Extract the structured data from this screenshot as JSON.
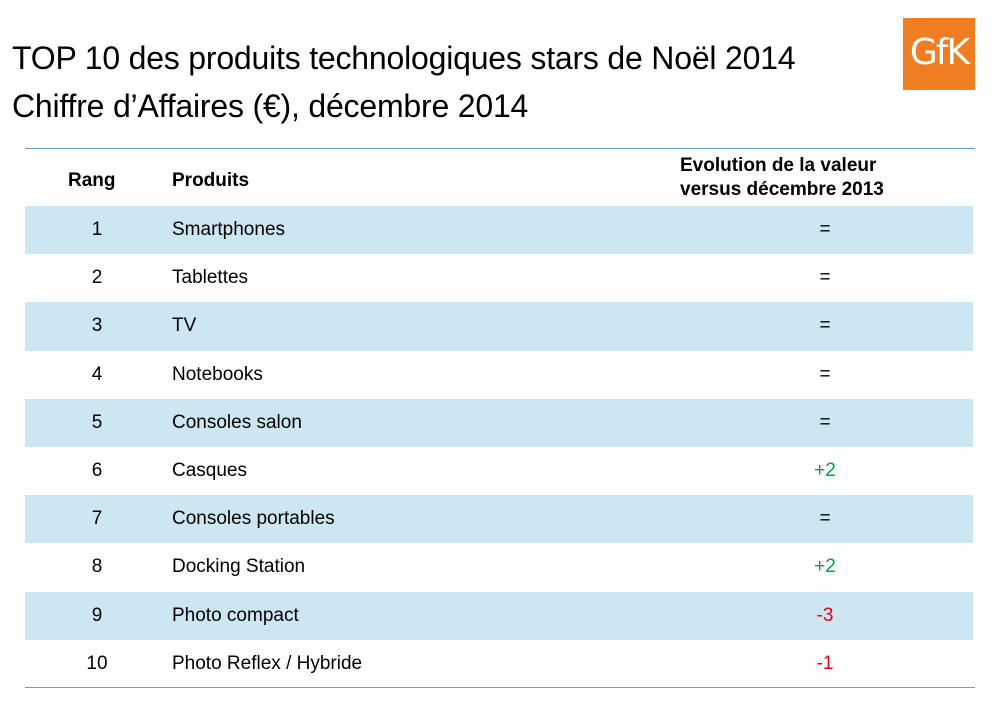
{
  "title": {
    "line1": "TOP 10 des produits technologiques stars de Noël 2014",
    "line2": "Chiffre d’Affaires (€), décembre 2014"
  },
  "logo": {
    "text": "GfK",
    "color": "#ef7d22"
  },
  "colors": {
    "row_shade": "#cce6f2",
    "rule": "#6a9ec9",
    "positive": "#00a14b",
    "negative": "#e2001a",
    "neutral": "#000000"
  },
  "chart_data": {
    "type": "table",
    "title": "TOP 10 des produits technologiques stars de Noël 2014",
    "subtitle": "Chiffre d’Affaires (€), décembre 2014",
    "columns": [
      "Rang",
      "Produits",
      "Evolution de la valeur versus décembre 2013"
    ],
    "column_header_lines": {
      "evolution_line1": "Evolution de la valeur",
      "evolution_line2": "versus décembre 2013"
    },
    "rows": [
      {
        "rank": "1",
        "product": "Smartphones",
        "evolution": "=",
        "trend": "neutral"
      },
      {
        "rank": "2",
        "product": "Tablettes",
        "evolution": "=",
        "trend": "neutral"
      },
      {
        "rank": "3",
        "product": "TV",
        "evolution": "=",
        "trend": "neutral"
      },
      {
        "rank": "4",
        "product": "Notebooks",
        "evolution": "=",
        "trend": "neutral"
      },
      {
        "rank": "5",
        "product": "Consoles salon",
        "evolution": "=",
        "trend": "neutral"
      },
      {
        "rank": "6",
        "product": "Casques",
        "evolution": "+2",
        "trend": "positive"
      },
      {
        "rank": "7",
        "product": "Consoles portables",
        "evolution": "=",
        "trend": "neutral"
      },
      {
        "rank": "8",
        "product": "Docking Station",
        "evolution": "+2",
        "trend": "positive"
      },
      {
        "rank": "9",
        "product": "Photo compact",
        "evolution": "-3",
        "trend": "negative"
      },
      {
        "rank": "10",
        "product": "Photo Reflex / Hybride",
        "evolution": "-1",
        "trend": "negative"
      }
    ]
  }
}
